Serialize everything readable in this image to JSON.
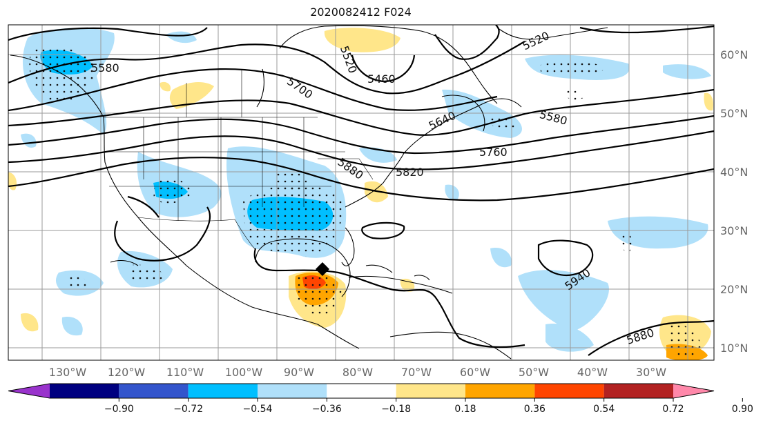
{
  "title": "2020082412 F024",
  "lat_labels": [
    "60°N",
    "50°N",
    "40°N",
    "30°N",
    "20°N",
    "10°N"
  ],
  "lon_labels": [
    "130°W",
    "120°W",
    "110°W",
    "100°W",
    "90°W",
    "80°W",
    "70°W",
    "60°W",
    "50°W",
    "40°W",
    "30°W"
  ],
  "contour_labels": [
    "5580",
    "5460",
    "5520",
    "5520",
    "5700",
    "5640",
    "5580",
    "5760",
    "5820",
    "5880",
    "5940",
    "5880"
  ],
  "colorbar": {
    "ticks": [
      "−0.90",
      "−0.72",
      "−0.54",
      "−0.36",
      "−0.18",
      "0.18",
      "0.36",
      "0.54",
      "0.72",
      "0.90"
    ],
    "colors": [
      "#9933cc",
      "#000080",
      "#3355cc",
      "#00bfff",
      "#b0e0fa",
      "#ffffff",
      "#ffe68a",
      "#ffa500",
      "#ff4500",
      "#b22222",
      "#ff88aa"
    ]
  },
  "fill_colors": {
    "neg_light": "#b0e0fa",
    "neg_mid": "#00bfff",
    "pos_light": "#ffe68a",
    "pos_mid": "#ffa500",
    "pos_strong": "#ff4500"
  }
}
